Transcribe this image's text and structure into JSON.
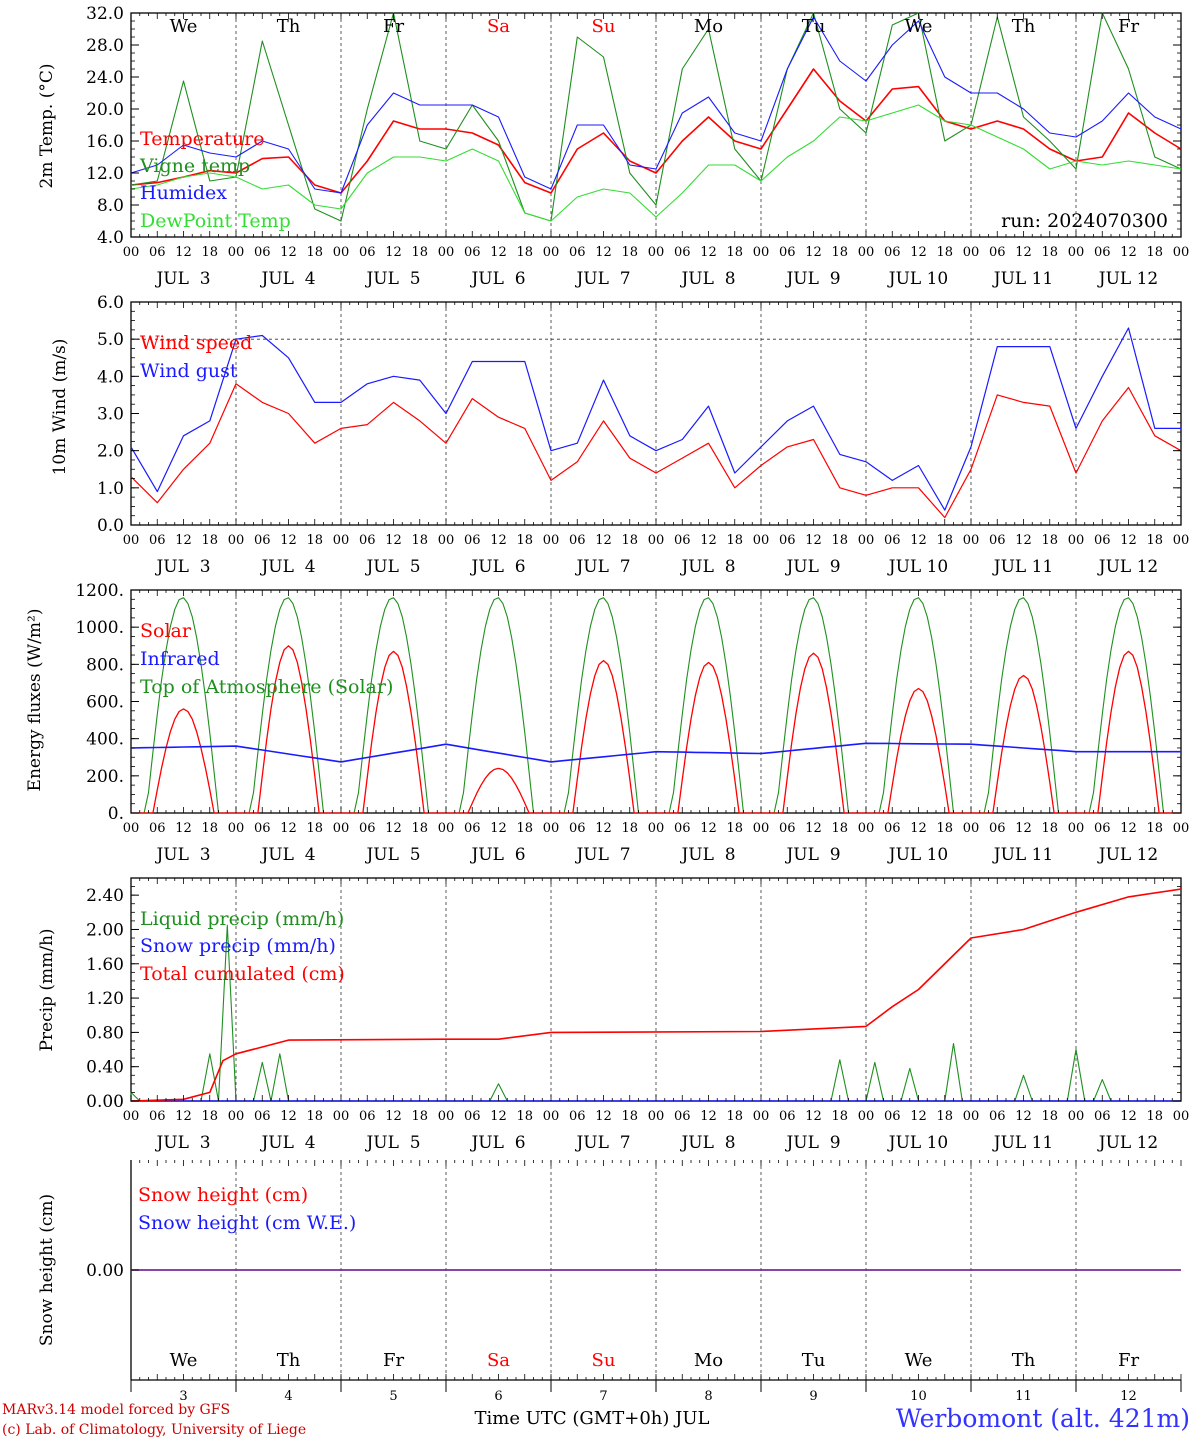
{
  "days": [
    "We",
    "Th",
    "Fr",
    "Sa",
    "Su",
    "Mo",
    "Tu",
    "We",
    "Th",
    "Fr"
  ],
  "day_colors": [
    "#000000",
    "#000000",
    "#000000",
    "#ff0000",
    "#ff0000",
    "#000000",
    "#000000",
    "#000000",
    "#000000",
    "#000000"
  ],
  "hour_ticks": [
    "00",
    "06",
    "12",
    "18"
  ],
  "last_hour_tick": "00",
  "date_labels": [
    "JUL  3",
    "JUL  4",
    "JUL  5",
    "JUL  6",
    "JUL  7",
    "JUL  8",
    "JUL  9",
    "JUL 10",
    "JUL 11",
    "JUL 12"
  ],
  "bottom_day_numbers": [
    "3",
    "4",
    "5",
    "6",
    "7",
    "8",
    "9",
    "10",
    "11",
    "12"
  ],
  "run_label": "run: 2024070300",
  "x_axis_title": "Time UTC (GMT+0h) JUL",
  "credit_line1": "MARv3.14 model forced by GFS",
  "credit_line2": "(c) Lab. of Climatology, University of Liege",
  "station": "Werbomont (alt. 421m)",
  "colors": {
    "red": "#ff0000",
    "green": "#1f8f1f",
    "blue": "#1a1aff",
    "lime": "#33dd33",
    "purple": "#7a2a9a",
    "station": "#3333ff",
    "credit": "#cc0000"
  },
  "chart_data": [
    {
      "type": "line",
      "ylabel": "2m Temp. (°C)",
      "ylim": [
        4.0,
        32.0
      ],
      "yticks": [
        "4.0",
        "8.0",
        "12.0",
        "16.0",
        "20.0",
        "24.0",
        "28.0",
        "32.0"
      ],
      "x_hours": [
        0,
        6,
        12,
        18,
        24,
        30,
        36,
        42,
        48,
        54,
        60,
        66,
        72,
        78,
        84,
        90,
        96,
        102,
        108,
        114,
        120,
        126,
        132,
        138,
        144,
        150,
        156,
        162,
        168,
        174,
        180,
        186,
        192,
        198,
        204,
        210,
        216,
        222,
        228,
        234,
        240
      ],
      "series": [
        {
          "name": "Temperature",
          "color": "red",
          "values": [
            10.5,
            10.8,
            11.5,
            12.3,
            12.0,
            13.8,
            14.0,
            10.5,
            9.5,
            13.5,
            18.5,
            17.5,
            17.5,
            17.0,
            15.5,
            10.8,
            9.5,
            15.0,
            17.0,
            13.5,
            12.0,
            16.0,
            19.0,
            16.0,
            15.0,
            20.0,
            25.0,
            21.0,
            18.5,
            22.5,
            22.8,
            18.5,
            17.5,
            18.5,
            17.5,
            15.0,
            13.5,
            14.0,
            19.5,
            17.0,
            15.0
          ]
        },
        {
          "name": "Vigne temp",
          "color": "green",
          "values": [
            10.5,
            11.0,
            23.5,
            11.0,
            11.5,
            28.5,
            18.0,
            7.5,
            6.0,
            20.0,
            32.0,
            16.0,
            15.0,
            20.5,
            16.0,
            7.0,
            6.0,
            29.0,
            26.5,
            12.0,
            8.0,
            25.0,
            30.0,
            15.0,
            11.0,
            25.0,
            32.0,
            20.0,
            17.0,
            30.5,
            32.0,
            16.0,
            18.0,
            31.5,
            19.0,
            16.0,
            12.5,
            32.0,
            25.0,
            14.0,
            12.5
          ]
        },
        {
          "name": "Humidex",
          "color": "blue",
          "values": [
            12.0,
            13.0,
            15.5,
            14.5,
            14.0,
            16.0,
            15.0,
            10.0,
            9.5,
            18.0,
            22.0,
            20.5,
            20.5,
            20.5,
            19.0,
            11.5,
            10.0,
            18.0,
            18.0,
            13.0,
            12.5,
            19.5,
            21.5,
            17.0,
            16.0,
            25.0,
            31.5,
            26.0,
            23.5,
            28.0,
            31.0,
            24.0,
            22.0,
            22.0,
            20.0,
            17.0,
            16.5,
            18.5,
            22.0,
            19.0,
            17.5
          ]
        },
        {
          "name": "DewPoint Temp",
          "color": "lime",
          "values": [
            10.0,
            10.5,
            11.5,
            12.0,
            11.5,
            10.0,
            10.5,
            8.0,
            7.5,
            12.0,
            14.0,
            14.0,
            13.5,
            15.0,
            13.5,
            7.0,
            6.0,
            9.0,
            10.0,
            9.5,
            6.5,
            9.5,
            13.0,
            13.0,
            11.0,
            14.0,
            16.0,
            19.0,
            18.5,
            19.5,
            20.5,
            18.5,
            18.0,
            16.5,
            15.0,
            12.5,
            13.5,
            13.0,
            13.5,
            13.0,
            12.5
          ]
        }
      ]
    },
    {
      "type": "line",
      "ylabel": "10m Wind (m/s)",
      "ylim": [
        0.0,
        6.0
      ],
      "yticks": [
        "0.0",
        "1.0",
        "2.0",
        "3.0",
        "4.0",
        "5.0",
        "6.0"
      ],
      "reference_line": 5.0,
      "x_hours": [
        0,
        6,
        12,
        18,
        24,
        30,
        36,
        42,
        48,
        54,
        60,
        66,
        72,
        78,
        84,
        90,
        96,
        102,
        108,
        114,
        120,
        126,
        132,
        138,
        144,
        150,
        156,
        162,
        168,
        174,
        180,
        186,
        192,
        198,
        204,
        210,
        216,
        222,
        228,
        234,
        240
      ],
      "series": [
        {
          "name": "Wind speed",
          "color": "red",
          "values": [
            1.3,
            0.6,
            1.5,
            2.2,
            3.8,
            3.3,
            3.0,
            2.2,
            2.6,
            2.7,
            3.3,
            2.8,
            2.2,
            3.4,
            2.9,
            2.6,
            1.2,
            1.7,
            2.8,
            1.8,
            1.4,
            1.8,
            2.2,
            1.0,
            1.6,
            2.1,
            2.3,
            1.0,
            0.8,
            1.0,
            1.0,
            0.2,
            1.5,
            3.5,
            3.3,
            3.2,
            1.4,
            2.8,
            3.7,
            2.4,
            2.0
          ]
        },
        {
          "name": "Wind gust",
          "color": "blue",
          "values": [
            2.1,
            0.9,
            2.4,
            2.8,
            5.0,
            5.1,
            4.5,
            3.3,
            3.3,
            3.8,
            4.0,
            3.9,
            3.0,
            4.4,
            4.4,
            4.4,
            2.0,
            2.2,
            3.9,
            2.4,
            2.0,
            2.3,
            3.2,
            1.4,
            2.1,
            2.8,
            3.2,
            1.9,
            1.7,
            1.2,
            1.6,
            0.4,
            2.1,
            4.8,
            4.8,
            4.8,
            2.6,
            4.0,
            5.3,
            2.6,
            2.6
          ]
        }
      ]
    },
    {
      "type": "line",
      "ylabel": "Energy fluxes (W/m²)",
      "ylim": [
        0,
        1200
      ],
      "yticks": [
        "0.",
        "200.",
        "400.",
        "600.",
        "800.",
        "1000.",
        "1200."
      ],
      "series": [
        {
          "name": "Solar",
          "color": "red",
          "day_peaks": [
            560,
            900,
            870,
            240,
            820,
            810,
            860,
            670,
            740,
            870
          ]
        },
        {
          "name": "Infrared",
          "color": "blue",
          "values_per_day": [
            350,
            360,
            275,
            370,
            275,
            330,
            320,
            375,
            370,
            330
          ]
        },
        {
          "name": "Top of Atmosphere (Solar)",
          "color": "green",
          "day_peak": 1160
        }
      ]
    },
    {
      "type": "line",
      "ylabel": "Precip (mm/h)",
      "ylim": [
        0.0,
        2.6
      ],
      "yticks": [
        "0.00",
        "0.40",
        "0.80",
        "1.20",
        "1.60",
        "2.00",
        "2.40"
      ],
      "x_hours": [
        0,
        12,
        18,
        21,
        24,
        30,
        36,
        72,
        84,
        96,
        144,
        168,
        174,
        180,
        192,
        204,
        216,
        228,
        240
      ],
      "series": [
        {
          "name": "Liquid precip (mm/h)",
          "color": "green",
          "peaks": [
            [
              0,
              0.1
            ],
            [
              18,
              0.55
            ],
            [
              22,
              2.05
            ],
            [
              30,
              0.45
            ],
            [
              34,
              0.55
            ],
            [
              84,
              0.2
            ],
            [
              162,
              0.48
            ],
            [
              170,
              0.45
            ],
            [
              178,
              0.38
            ],
            [
              188,
              0.67
            ],
            [
              204,
              0.3
            ],
            [
              216,
              0.6
            ],
            [
              222,
              0.25
            ]
          ]
        },
        {
          "name": "Snow precip (mm/h)",
          "color": "blue",
          "values": [
            0,
            0,
            0,
            0,
            0,
            0,
            0,
            0,
            0,
            0,
            0,
            0,
            0,
            0,
            0,
            0,
            0,
            0,
            0
          ]
        },
        {
          "name": "Total cumulated (cm)",
          "color": "red",
          "values": [
            0.0,
            0.02,
            0.1,
            0.47,
            0.55,
            0.63,
            0.71,
            0.72,
            0.72,
            0.8,
            0.81,
            0.87,
            1.1,
            1.3,
            1.9,
            2.0,
            2.2,
            2.38,
            2.47
          ]
        }
      ]
    },
    {
      "type": "line",
      "ylabel": "Snow height (cm)",
      "yticks": [
        "0.00"
      ],
      "series": [
        {
          "name": "Snow height (cm)",
          "color": "red",
          "values": [
            0,
            0
          ]
        },
        {
          "name": "Snow height (cm W.E.)",
          "color": "blue",
          "values": [
            0,
            0
          ]
        }
      ]
    }
  ]
}
